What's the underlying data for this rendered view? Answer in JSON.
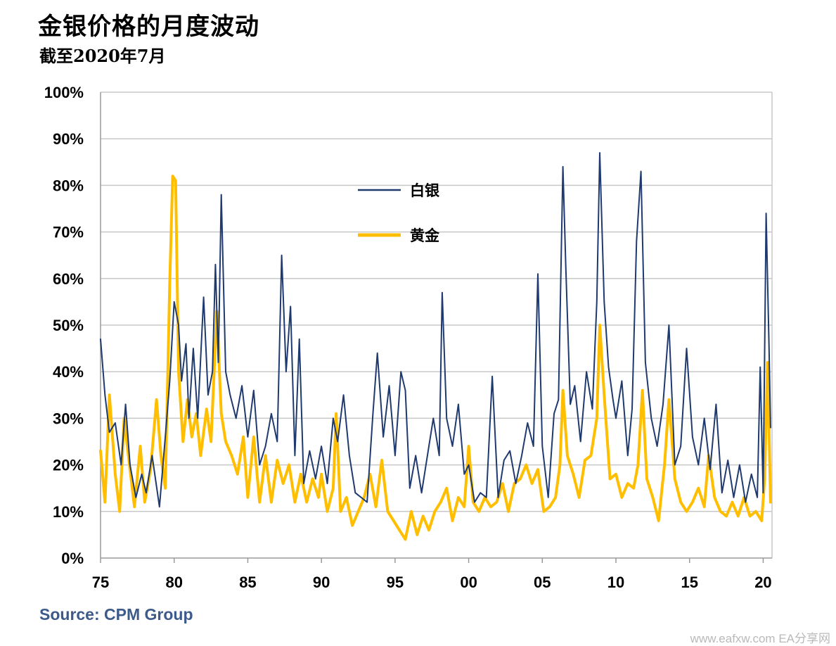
{
  "title": "金银价格的月度波动",
  "subtitle": "截至2020年7月",
  "source": "Source: CPM Group",
  "watermark": "www.eafxw.com  EA分享网",
  "chart_data": {
    "type": "line",
    "title": "金银价格的月度波动",
    "subtitle": "截至2020年7月",
    "xlabel": "",
    "ylabel": "",
    "xlim": [
      1975.0,
      2020.6
    ],
    "ylim": [
      0,
      100
    ],
    "x_tick_values": [
      1975,
      1980,
      1985,
      1990,
      1995,
      2000,
      2005,
      2010,
      2015,
      2020
    ],
    "x_tick_labels": [
      "75",
      "80",
      "85",
      "90",
      "95",
      "00",
      "05",
      "10",
      "15",
      "20"
    ],
    "y_ticks": [
      0,
      10,
      20,
      30,
      40,
      50,
      60,
      70,
      80,
      90,
      100
    ],
    "y_tick_labels": [
      "0%",
      "10%",
      "20%",
      "30%",
      "40%",
      "50%",
      "60%",
      "70%",
      "80%",
      "90%",
      "100%"
    ],
    "grid": "horizontal",
    "legend_position": "upper-center",
    "colors": {
      "silver": "#1f3a6e",
      "gold": "#ffbf00",
      "grid": "#c8c8c8",
      "axis": "#9a9a9a"
    },
    "series": [
      {
        "name": "白银",
        "color": "#1f3a6e",
        "points": [
          [
            1975.0,
            47
          ],
          [
            1975.3,
            35
          ],
          [
            1975.6,
            27
          ],
          [
            1976.0,
            29
          ],
          [
            1976.4,
            20
          ],
          [
            1976.7,
            33
          ],
          [
            1977.0,
            20
          ],
          [
            1977.4,
            13
          ],
          [
            1977.8,
            18
          ],
          [
            1978.1,
            14
          ],
          [
            1978.5,
            22
          ],
          [
            1979.0,
            11
          ],
          [
            1979.4,
            26
          ],
          [
            1979.7,
            38
          ],
          [
            1980.0,
            55
          ],
          [
            1980.3,
            50
          ],
          [
            1980.5,
            38
          ],
          [
            1980.8,
            46
          ],
          [
            1981.0,
            30
          ],
          [
            1981.3,
            45
          ],
          [
            1981.6,
            30
          ],
          [
            1982.0,
            56
          ],
          [
            1982.3,
            35
          ],
          [
            1982.6,
            40
          ],
          [
            1982.8,
            63
          ],
          [
            1983.0,
            42
          ],
          [
            1983.2,
            78
          ],
          [
            1983.5,
            40
          ],
          [
            1983.8,
            35
          ],
          [
            1984.2,
            30
          ],
          [
            1984.6,
            37
          ],
          [
            1985.0,
            26
          ],
          [
            1985.4,
            36
          ],
          [
            1985.8,
            20
          ],
          [
            1986.2,
            24
          ],
          [
            1986.6,
            31
          ],
          [
            1987.0,
            25
          ],
          [
            1987.3,
            65
          ],
          [
            1987.6,
            40
          ],
          [
            1987.9,
            54
          ],
          [
            1988.2,
            22
          ],
          [
            1988.5,
            47
          ],
          [
            1988.8,
            16
          ],
          [
            1989.2,
            23
          ],
          [
            1989.6,
            17
          ],
          [
            1990.0,
            24
          ],
          [
            1990.4,
            16
          ],
          [
            1990.8,
            30
          ],
          [
            1991.1,
            25
          ],
          [
            1991.5,
            35
          ],
          [
            1991.9,
            22
          ],
          [
            1992.3,
            14
          ],
          [
            1992.7,
            13
          ],
          [
            1993.1,
            12
          ],
          [
            1993.5,
            31
          ],
          [
            1993.8,
            44
          ],
          [
            1994.2,
            26
          ],
          [
            1994.6,
            37
          ],
          [
            1995.0,
            22
          ],
          [
            1995.4,
            40
          ],
          [
            1995.7,
            36
          ],
          [
            1996.0,
            15
          ],
          [
            1996.4,
            22
          ],
          [
            1996.8,
            14
          ],
          [
            1997.2,
            22
          ],
          [
            1997.6,
            30
          ],
          [
            1998.0,
            22
          ],
          [
            1998.2,
            57
          ],
          [
            1998.5,
            30
          ],
          [
            1998.9,
            24
          ],
          [
            1999.3,
            33
          ],
          [
            1999.7,
            18
          ],
          [
            2000.0,
            20
          ],
          [
            2000.4,
            12
          ],
          [
            2000.8,
            14
          ],
          [
            2001.2,
            13
          ],
          [
            2001.6,
            39
          ],
          [
            2002.0,
            13
          ],
          [
            2002.4,
            21
          ],
          [
            2002.8,
            23
          ],
          [
            2003.2,
            16
          ],
          [
            2003.6,
            22
          ],
          [
            2004.0,
            29
          ],
          [
            2004.4,
            24
          ],
          [
            2004.7,
            61
          ],
          [
            2005.0,
            24
          ],
          [
            2005.4,
            13
          ],
          [
            2005.8,
            31
          ],
          [
            2006.1,
            34
          ],
          [
            2006.4,
            84
          ],
          [
            2006.6,
            62
          ],
          [
            2006.9,
            33
          ],
          [
            2007.2,
            37
          ],
          [
            2007.6,
            25
          ],
          [
            2008.0,
            40
          ],
          [
            2008.4,
            32
          ],
          [
            2008.7,
            55
          ],
          [
            2008.9,
            87
          ],
          [
            2009.2,
            55
          ],
          [
            2009.5,
            41
          ],
          [
            2009.8,
            34
          ],
          [
            2010.0,
            30
          ],
          [
            2010.4,
            38
          ],
          [
            2010.8,
            22
          ],
          [
            2011.1,
            32
          ],
          [
            2011.4,
            68
          ],
          [
            2011.7,
            83
          ],
          [
            2012.0,
            42
          ],
          [
            2012.4,
            30
          ],
          [
            2012.8,
            24
          ],
          [
            2013.2,
            33
          ],
          [
            2013.6,
            50
          ],
          [
            2014.0,
            20
          ],
          [
            2014.4,
            24
          ],
          [
            2014.8,
            45
          ],
          [
            2015.2,
            26
          ],
          [
            2015.6,
            20
          ],
          [
            2016.0,
            30
          ],
          [
            2016.4,
            19
          ],
          [
            2016.8,
            33
          ],
          [
            2017.2,
            14
          ],
          [
            2017.6,
            21
          ],
          [
            2018.0,
            13
          ],
          [
            2018.4,
            20
          ],
          [
            2018.8,
            12
          ],
          [
            2019.2,
            18
          ],
          [
            2019.6,
            13
          ],
          [
            2019.8,
            41
          ],
          [
            2020.0,
            14
          ],
          [
            2020.2,
            74
          ],
          [
            2020.4,
            45
          ],
          [
            2020.5,
            28
          ]
        ]
      },
      {
        "name": "黄金",
        "color": "#ffbf00",
        "points": [
          [
            1975.0,
            23
          ],
          [
            1975.3,
            12
          ],
          [
            1975.6,
            35
          ],
          [
            1976.0,
            18
          ],
          [
            1976.3,
            10
          ],
          [
            1976.6,
            30
          ],
          [
            1977.0,
            19
          ],
          [
            1977.3,
            11
          ],
          [
            1977.7,
            24
          ],
          [
            1978.0,
            12
          ],
          [
            1978.4,
            19
          ],
          [
            1978.8,
            34
          ],
          [
            1979.1,
            22
          ],
          [
            1979.4,
            15
          ],
          [
            1979.7,
            59
          ],
          [
            1979.9,
            82
          ],
          [
            1980.1,
            81
          ],
          [
            1980.3,
            40
          ],
          [
            1980.6,
            25
          ],
          [
            1980.9,
            34
          ],
          [
            1981.2,
            26
          ],
          [
            1981.5,
            31
          ],
          [
            1981.8,
            22
          ],
          [
            1982.2,
            32
          ],
          [
            1982.5,
            25
          ],
          [
            1982.9,
            53
          ],
          [
            1983.2,
            31
          ],
          [
            1983.5,
            25
          ],
          [
            1983.9,
            22
          ],
          [
            1984.3,
            18
          ],
          [
            1984.7,
            26
          ],
          [
            1985.0,
            13
          ],
          [
            1985.4,
            26
          ],
          [
            1985.8,
            12
          ],
          [
            1986.2,
            22
          ],
          [
            1986.6,
            12
          ],
          [
            1987.0,
            21
          ],
          [
            1987.4,
            16
          ],
          [
            1987.8,
            20
          ],
          [
            1988.2,
            12
          ],
          [
            1988.6,
            18
          ],
          [
            1989.0,
            12
          ],
          [
            1989.4,
            17
          ],
          [
            1989.8,
            13
          ],
          [
            1990.0,
            18
          ],
          [
            1990.4,
            10
          ],
          [
            1990.8,
            15
          ],
          [
            1991.0,
            31
          ],
          [
            1991.3,
            10
          ],
          [
            1991.7,
            13
          ],
          [
            1992.1,
            7
          ],
          [
            1992.5,
            10
          ],
          [
            1992.9,
            13
          ],
          [
            1993.3,
            18
          ],
          [
            1993.7,
            11
          ],
          [
            1994.1,
            21
          ],
          [
            1994.5,
            10
          ],
          [
            1994.9,
            8
          ],
          [
            1995.3,
            6
          ],
          [
            1995.7,
            4
          ],
          [
            1996.1,
            10
          ],
          [
            1996.5,
            5
          ],
          [
            1996.9,
            9
          ],
          [
            1997.3,
            6
          ],
          [
            1997.7,
            10
          ],
          [
            1998.1,
            12
          ],
          [
            1998.5,
            15
          ],
          [
            1998.9,
            8
          ],
          [
            1999.3,
            13
          ],
          [
            1999.7,
            11
          ],
          [
            2000.0,
            24
          ],
          [
            2000.3,
            12
          ],
          [
            2000.7,
            10
          ],
          [
            2001.1,
            13
          ],
          [
            2001.5,
            11
          ],
          [
            2001.9,
            12
          ],
          [
            2002.3,
            16
          ],
          [
            2002.7,
            10
          ],
          [
            2003.1,
            16
          ],
          [
            2003.5,
            17
          ],
          [
            2003.9,
            20
          ],
          [
            2004.3,
            16
          ],
          [
            2004.7,
            19
          ],
          [
            2005.1,
            10
          ],
          [
            2005.5,
            11
          ],
          [
            2005.9,
            13
          ],
          [
            2006.2,
            20
          ],
          [
            2006.4,
            36
          ],
          [
            2006.7,
            22
          ],
          [
            2007.1,
            18
          ],
          [
            2007.5,
            13
          ],
          [
            2007.9,
            21
          ],
          [
            2008.3,
            22
          ],
          [
            2008.7,
            30
          ],
          [
            2008.9,
            50
          ],
          [
            2009.2,
            35
          ],
          [
            2009.6,
            17
          ],
          [
            2010.0,
            18
          ],
          [
            2010.4,
            13
          ],
          [
            2010.8,
            16
          ],
          [
            2011.2,
            15
          ],
          [
            2011.5,
            20
          ],
          [
            2011.8,
            36
          ],
          [
            2012.1,
            17
          ],
          [
            2012.5,
            13
          ],
          [
            2012.9,
            8
          ],
          [
            2013.3,
            20
          ],
          [
            2013.6,
            34
          ],
          [
            2014.0,
            17
          ],
          [
            2014.4,
            12
          ],
          [
            2014.8,
            10
          ],
          [
            2015.2,
            12
          ],
          [
            2015.6,
            15
          ],
          [
            2016.0,
            11
          ],
          [
            2016.3,
            22
          ],
          [
            2016.7,
            13
          ],
          [
            2017.1,
            10
          ],
          [
            2017.5,
            9
          ],
          [
            2017.9,
            12
          ],
          [
            2018.3,
            9
          ],
          [
            2018.7,
            13
          ],
          [
            2019.1,
            9
          ],
          [
            2019.5,
            10
          ],
          [
            2019.9,
            8
          ],
          [
            2020.1,
            17
          ],
          [
            2020.3,
            42
          ],
          [
            2020.5,
            12
          ]
        ]
      }
    ]
  }
}
